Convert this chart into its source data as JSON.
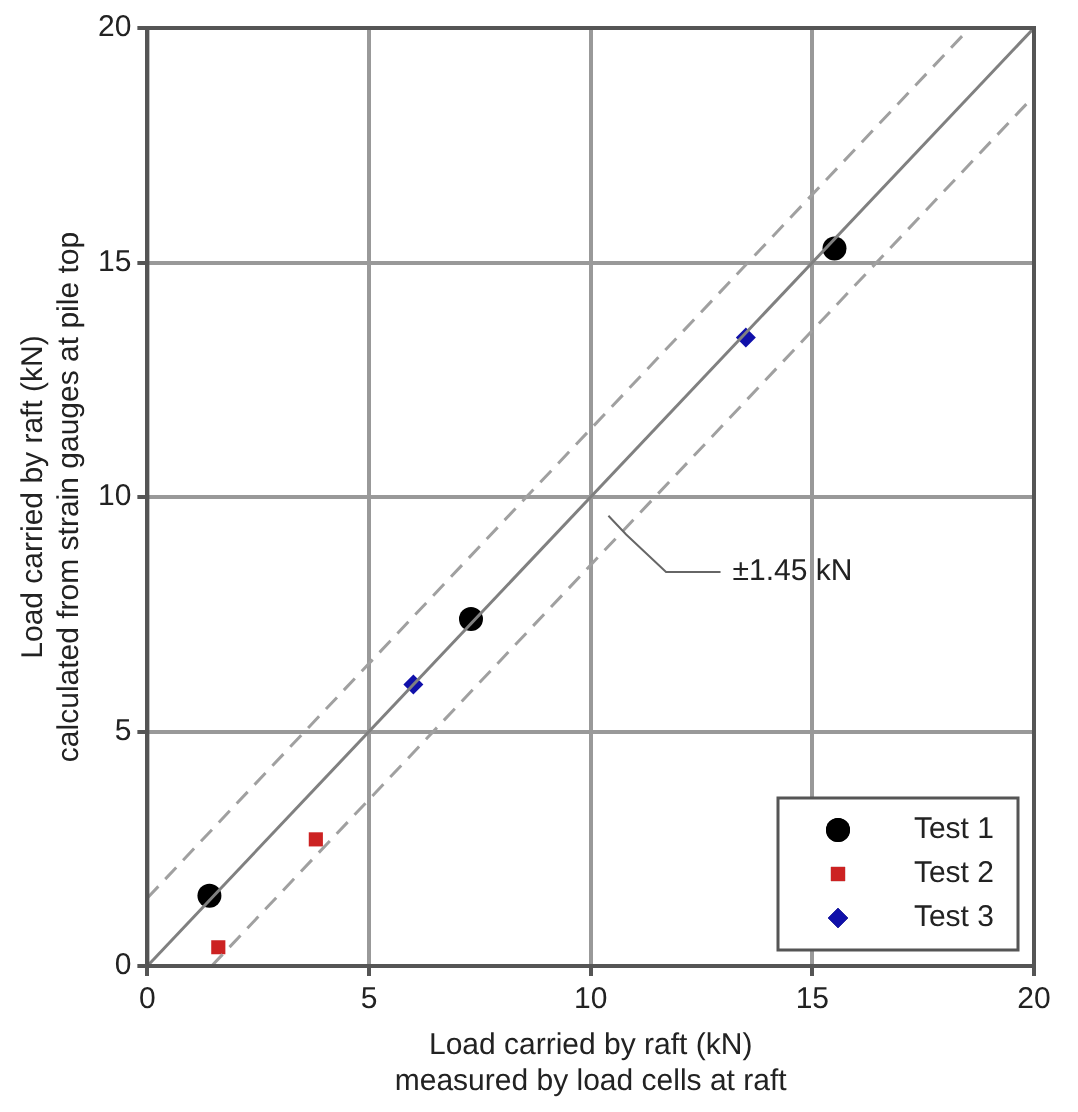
{
  "chart_data": {
    "type": "scatter",
    "xlabel": "Load carried by raft (kN)\nmeasured by load cells at raft",
    "ylabel": "Load carried by raft (kN)\ncalculated from strain gauges at pile top",
    "xlim": [
      0,
      20
    ],
    "ylim": [
      0,
      20
    ],
    "xticks": [
      0,
      5,
      10,
      15,
      20
    ],
    "yticks": [
      0,
      5,
      10,
      15,
      20
    ],
    "grid": true,
    "legend": "bottom right",
    "annotations": [
      "±1.45 kN"
    ],
    "series": [
      {
        "type": "line",
        "color": "#808080",
        "x": [
          0,
          20
        ],
        "values": [
          0,
          20
        ],
        "line_style": "solid",
        "marker": "none"
      },
      {
        "type": "line",
        "color": "#a0a0a0",
        "x": [
          0,
          18.55
        ],
        "values": [
          1.45,
          20
        ],
        "line_style": "dashed",
        "marker": "none"
      },
      {
        "type": "line",
        "color": "#a0a0a0",
        "x": [
          1.45,
          20
        ],
        "values": [
          0,
          18.55
        ],
        "line_style": "dashed",
        "marker": "none"
      },
      {
        "name": "Test 1",
        "color": "#000000",
        "marker": "circle",
        "x": [
          1.4,
          7.3,
          15.5
        ],
        "values": [
          1.5,
          7.4,
          15.3
        ]
      },
      {
        "name": "Test 2",
        "color": "#cc2222",
        "marker": "square",
        "x": [
          1.6,
          3.8
        ],
        "values": [
          0.4,
          2.7
        ]
      },
      {
        "name": "Test 3",
        "color": "#1010aa",
        "marker": "diamond",
        "x": [
          6.0,
          13.5
        ],
        "values": [
          6.0,
          13.4
        ]
      }
    ]
  }
}
